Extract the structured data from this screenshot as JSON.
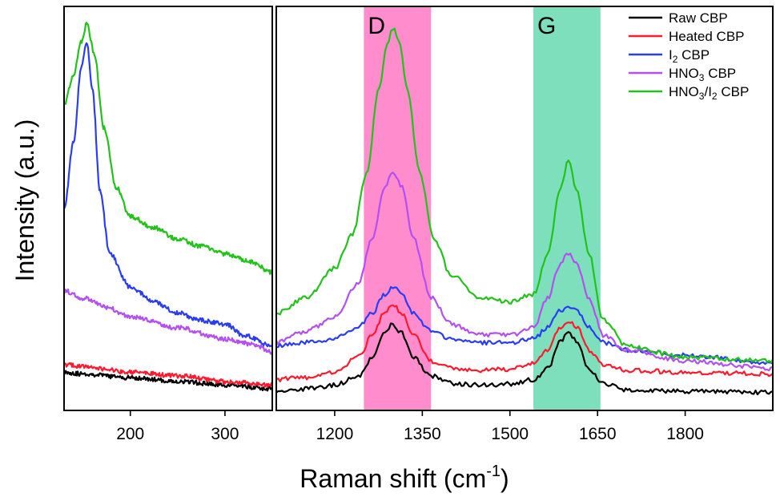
{
  "chart_data": {
    "type": "line",
    "xlabel": "Raman shift (cm",
    "xlabel_sup": "-1",
    "xlabel_close": ")",
    "ylabel": "Intensity (a.u.)",
    "y_ticks_shown": false,
    "grid": false,
    "legend_position": "top-right",
    "series": [
      {
        "name_parts": [
          [
            "Raw CBP",
            ""
          ]
        ],
        "color": "#000000"
      },
      {
        "name_parts": [
          [
            "Heated CBP",
            ""
          ]
        ],
        "color": "#ff1a2e"
      },
      {
        "name_parts": [
          [
            "I",
            ""
          ],
          [
            "2",
            "sub"
          ],
          [
            " CBP",
            ""
          ]
        ],
        "color": "#2a3df0"
      },
      {
        "name_parts": [
          [
            "HNO",
            ""
          ],
          [
            "3",
            "sub"
          ],
          [
            " CBP",
            ""
          ]
        ],
        "color": "#b44ff0"
      },
      {
        "name_parts": [
          [
            "HNO",
            ""
          ],
          [
            "3",
            "sub"
          ],
          [
            "/I",
            ""
          ],
          [
            "2",
            "sub"
          ],
          [
            " CBP",
            ""
          ]
        ],
        "color": "#22c21a"
      }
    ],
    "panels": [
      {
        "id": "low",
        "xlim": [
          130,
          350
        ],
        "x_ticks": [
          200,
          300
        ],
        "x_tick_labels": [
          "200",
          "300"
        ],
        "curves": [
          {
            "series": 0,
            "points": [
              [
                130,
                0.06
              ],
              [
                150,
                0.055
              ],
              [
                200,
                0.045
              ],
              [
                250,
                0.035
              ],
              [
                300,
                0.025
              ],
              [
                350,
                0.015
              ]
            ]
          },
          {
            "series": 1,
            "points": [
              [
                130,
                0.08
              ],
              [
                150,
                0.075
              ],
              [
                200,
                0.06
              ],
              [
                250,
                0.05
              ],
              [
                300,
                0.035
              ],
              [
                350,
                0.025
              ]
            ]
          },
          {
            "series": 2,
            "points": [
              [
                130,
                0.5
              ],
              [
                140,
                0.68
              ],
              [
                148,
                0.88
              ],
              [
                154,
                0.95
              ],
              [
                160,
                0.82
              ],
              [
                168,
                0.55
              ],
              [
                178,
                0.38
              ],
              [
                200,
                0.29
              ],
              [
                225,
                0.25
              ],
              [
                250,
                0.22
              ],
              [
                275,
                0.2
              ],
              [
                300,
                0.19
              ],
              [
                320,
                0.16
              ],
              [
                350,
                0.13
              ]
            ]
          },
          {
            "series": 3,
            "points": [
              [
                130,
                0.28
              ],
              [
                150,
                0.26
              ],
              [
                175,
                0.235
              ],
              [
                200,
                0.21
              ],
              [
                250,
                0.18
              ],
              [
                300,
                0.15
              ],
              [
                330,
                0.135
              ],
              [
                350,
                0.115
              ]
            ]
          },
          {
            "series": 4,
            "points": [
              [
                130,
                0.78
              ],
              [
                140,
                0.86
              ],
              [
                148,
                0.95
              ],
              [
                154,
                1.0
              ],
              [
                162,
                0.92
              ],
              [
                172,
                0.72
              ],
              [
                185,
                0.56
              ],
              [
                200,
                0.48
              ],
              [
                225,
                0.45
              ],
              [
                250,
                0.42
              ],
              [
                275,
                0.4
              ],
              [
                300,
                0.38
              ],
              [
                325,
                0.36
              ],
              [
                350,
                0.33
              ]
            ]
          }
        ]
      },
      {
        "id": "high",
        "xlim": [
          1100,
          1950
        ],
        "x_ticks": [
          1200,
          1350,
          1500,
          1650,
          1800
        ],
        "x_tick_labels": [
          "1200",
          "1350",
          "1500",
          "1650",
          "1800"
        ],
        "bands": [
          {
            "label": "D",
            "range": [
              1250,
              1365
            ],
            "color": "#ff8ccc"
          },
          {
            "label": "G",
            "range": [
              1540,
              1655
            ],
            "color": "#7edfbd"
          }
        ],
        "curves": [
          {
            "series": 0,
            "points": [
              [
                1100,
                0.01
              ],
              [
                1150,
                0.015
              ],
              [
                1200,
                0.025
              ],
              [
                1240,
                0.05
              ],
              [
                1265,
                0.1
              ],
              [
                1285,
                0.165
              ],
              [
                1300,
                0.19
              ],
              [
                1315,
                0.165
              ],
              [
                1335,
                0.1
              ],
              [
                1365,
                0.05
              ],
              [
                1400,
                0.03
              ],
              [
                1450,
                0.025
              ],
              [
                1500,
                0.028
              ],
              [
                1540,
                0.04
              ],
              [
                1565,
                0.07
              ],
              [
                1585,
                0.14
              ],
              [
                1600,
                0.17
              ],
              [
                1615,
                0.14
              ],
              [
                1635,
                0.07
              ],
              [
                1660,
                0.03
              ],
              [
                1700,
                0.012
              ],
              [
                1800,
                0.008
              ],
              [
                1950,
                0.005
              ]
            ]
          },
          {
            "series": 1,
            "points": [
              [
                1100,
                0.04
              ],
              [
                1150,
                0.045
              ],
              [
                1200,
                0.06
              ],
              [
                1240,
                0.1
              ],
              [
                1265,
                0.16
              ],
              [
                1285,
                0.22
              ],
              [
                1300,
                0.24
              ],
              [
                1315,
                0.22
              ],
              [
                1335,
                0.16
              ],
              [
                1365,
                0.09
              ],
              [
                1400,
                0.07
              ],
              [
                1450,
                0.065
              ],
              [
                1500,
                0.068
              ],
              [
                1540,
                0.085
              ],
              [
                1565,
                0.12
              ],
              [
                1585,
                0.18
              ],
              [
                1600,
                0.2
              ],
              [
                1615,
                0.18
              ],
              [
                1635,
                0.12
              ],
              [
                1660,
                0.08
              ],
              [
                1700,
                0.065
              ],
              [
                1800,
                0.06
              ],
              [
                1950,
                0.055
              ]
            ]
          },
          {
            "series": 2,
            "points": [
              [
                1100,
                0.13
              ],
              [
                1150,
                0.14
              ],
              [
                1200,
                0.15
              ],
              [
                1240,
                0.18
              ],
              [
                1265,
                0.22
              ],
              [
                1285,
                0.27
              ],
              [
                1300,
                0.29
              ],
              [
                1315,
                0.27
              ],
              [
                1335,
                0.22
              ],
              [
                1365,
                0.17
              ],
              [
                1400,
                0.15
              ],
              [
                1450,
                0.14
              ],
              [
                1500,
                0.14
              ],
              [
                1540,
                0.15
              ],
              [
                1565,
                0.18
              ],
              [
                1585,
                0.225
              ],
              [
                1600,
                0.24
              ],
              [
                1615,
                0.225
              ],
              [
                1635,
                0.18
              ],
              [
                1660,
                0.14
              ],
              [
                1700,
                0.12
              ],
              [
                1800,
                0.105
              ],
              [
                1950,
                0.085
              ]
            ]
          },
          {
            "series": 3,
            "points": [
              [
                1100,
                0.14
              ],
              [
                1150,
                0.17
              ],
              [
                1200,
                0.21
              ],
              [
                1240,
                0.3
              ],
              [
                1265,
                0.42
              ],
              [
                1285,
                0.56
              ],
              [
                1300,
                0.6
              ],
              [
                1315,
                0.56
              ],
              [
                1335,
                0.42
              ],
              [
                1365,
                0.26
              ],
              [
                1400,
                0.19
              ],
              [
                1450,
                0.16
              ],
              [
                1500,
                0.16
              ],
              [
                1540,
                0.18
              ],
              [
                1565,
                0.26
              ],
              [
                1585,
                0.35
              ],
              [
                1600,
                0.38
              ],
              [
                1615,
                0.35
              ],
              [
                1635,
                0.26
              ],
              [
                1660,
                0.16
              ],
              [
                1700,
                0.12
              ],
              [
                1800,
                0.09
              ],
              [
                1950,
                0.07
              ]
            ]
          },
          {
            "series": 4,
            "points": [
              [
                1100,
                0.22
              ],
              [
                1150,
                0.26
              ],
              [
                1200,
                0.34
              ],
              [
                1230,
                0.43
              ],
              [
                1255,
                0.6
              ],
              [
                1275,
                0.82
              ],
              [
                1290,
                0.95
              ],
              [
                1300,
                0.99
              ],
              [
                1310,
                0.95
              ],
              [
                1325,
                0.82
              ],
              [
                1345,
                0.6
              ],
              [
                1370,
                0.42
              ],
              [
                1400,
                0.32
              ],
              [
                1450,
                0.26
              ],
              [
                1500,
                0.25
              ],
              [
                1540,
                0.27
              ],
              [
                1565,
                0.38
              ],
              [
                1585,
                0.55
              ],
              [
                1600,
                0.63
              ],
              [
                1615,
                0.55
              ],
              [
                1635,
                0.38
              ],
              [
                1660,
                0.2
              ],
              [
                1700,
                0.13
              ],
              [
                1800,
                0.1
              ],
              [
                1950,
                0.09
              ]
            ]
          }
        ]
      }
    ]
  }
}
